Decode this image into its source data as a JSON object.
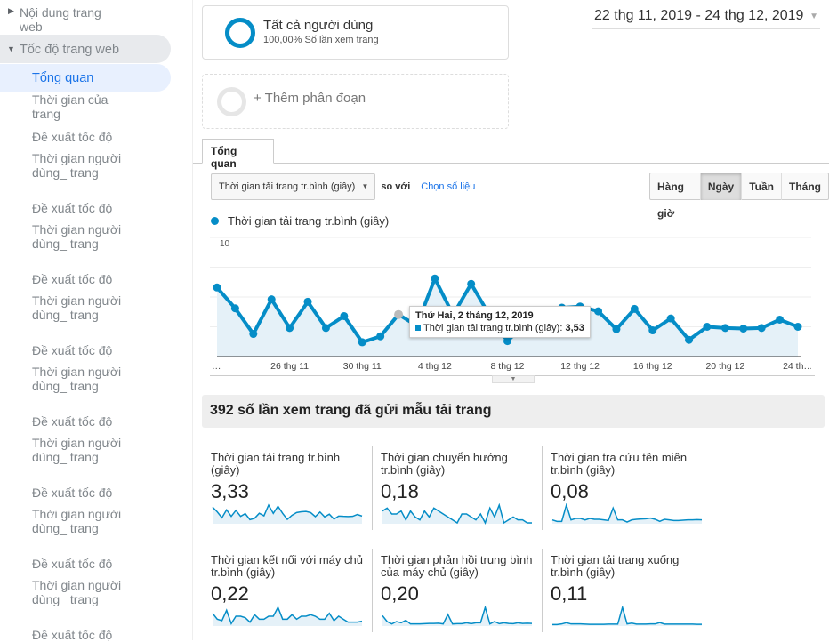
{
  "sidebar": {
    "content_item": "Nội dung trang web",
    "speed_item": "Tốc độ trang web",
    "items": [
      {
        "label": "Tổng quan",
        "active": true
      },
      {
        "label": "Thời gian của trang"
      },
      {
        "label": "Đề xuất tốc độ"
      },
      {
        "label": "Thời gian người dùng_ trang"
      },
      {
        "label": "Đề xuất tốc độ"
      },
      {
        "label": "Thời gian người dùng_ trang"
      },
      {
        "label": "Đề xuất tốc độ"
      },
      {
        "label": "Thời gian người dùng_ trang"
      },
      {
        "label": "Đề xuất tốc độ"
      },
      {
        "label": "Thời gian người dùng_ trang"
      },
      {
        "label": "Đề xuất tốc độ"
      },
      {
        "label": "Thời gian người dùng_ trang"
      },
      {
        "label": "Đề xuất tốc độ"
      },
      {
        "label": "Thời gian người dùng_ trang"
      },
      {
        "label": "Đề xuất tốc độ"
      },
      {
        "label": "Thời gian người dùng_ trang"
      },
      {
        "label": "Đề xuất tốc độ"
      }
    ]
  },
  "segments": {
    "all_users": {
      "title": "Tất cả người dùng",
      "subtitle": "100,00% Số lần xem trang"
    },
    "add_segment": "+ Thêm phân đoạn"
  },
  "date_range": "22 thg 11, 2019 - 24 thg 12, 2019",
  "tab": "Tổng quan",
  "controls": {
    "metric_select": "Thời gian tải trang tr.bình (giây)",
    "compare_label": "so với",
    "choose_metric": "Chọn số liệu",
    "granularity": [
      "Hàng giờ",
      "Ngày",
      "Tuần",
      "Tháng"
    ],
    "selected_granularity": "Ngày"
  },
  "colors": {
    "accent": "#058dc7",
    "fill": "#e5f1f8",
    "link": "#1a73e8"
  },
  "chart_data": {
    "type": "area",
    "legend": "Thời gian tải trang tr.bình (giây)",
    "ylim": [
      0,
      10
    ],
    "y_ticks": [
      "10",
      "5"
    ],
    "x_tick_labels": [
      {
        "index": 0,
        "label": "…"
      },
      {
        "index": 4,
        "label": "26 thg 11"
      },
      {
        "index": 8,
        "label": "30 thg 11"
      },
      {
        "index": 12,
        "label": "4 thg 12"
      },
      {
        "index": 16,
        "label": "8 thg 12"
      },
      {
        "index": 20,
        "label": "12 thg 12"
      },
      {
        "index": 24,
        "label": "16 thg 12"
      },
      {
        "index": 28,
        "label": "20 thg 12"
      },
      {
        "index": 32,
        "label": "24 th…"
      }
    ],
    "values": [
      5.8,
      4.05,
      1.9,
      4.8,
      2.4,
      4.6,
      2.4,
      3.4,
      1.2,
      1.7,
      3.53,
      2.6,
      6.55,
      3.5,
      6.1,
      3.5,
      1.3,
      2.8,
      3.8,
      4.1,
      4.2,
      3.8,
      2.3,
      4.0,
      2.2,
      3.2,
      1.4,
      2.5,
      2.4,
      2.35,
      2.4,
      3.1,
      2.5
    ],
    "tooltip": {
      "index": 10,
      "title": "Thứ Hai, 2 tháng 12, 2019",
      "series": "Thời gian tải trang tr.bình (giây):",
      "value": "3,53"
    }
  },
  "summary_title": "392 số lần xem trang đã gửi mẫu tải trang",
  "metrics": [
    {
      "label": "Thời gian tải trang tr.bình (giây)",
      "value": "3,33",
      "spark": [
        5.8,
        4.05,
        1.9,
        4.8,
        2.4,
        4.6,
        2.4,
        3.4,
        1.2,
        1.7,
        3.53,
        2.6,
        6.55,
        3.5,
        6.1,
        3.5,
        1.3,
        2.8,
        3.8,
        4.1,
        4.2,
        3.8,
        2.3,
        4.0,
        2.2,
        3.2,
        1.4,
        2.5,
        2.4,
        2.35,
        2.4,
        3.1,
        2.5
      ]
    },
    {
      "label": "Thời gian chuyển hướng tr.bình (giây)",
      "value": "0,18",
      "spark": [
        4,
        5,
        3,
        3,
        4,
        1,
        4,
        2,
        1,
        4,
        2,
        5,
        4,
        3,
        2,
        1,
        0,
        3,
        3,
        2,
        1,
        3,
        0,
        5,
        2,
        6,
        0,
        1,
        2,
        1,
        1,
        0,
        0
      ]
    },
    {
      "label": "Thời gian tra cứu tên miền tr.bình (giây)",
      "value": "0,08",
      "spark": [
        1,
        0.5,
        0.5,
        6,
        1,
        1.5,
        1.5,
        1,
        1.5,
        1.2,
        1.2,
        1,
        0.8,
        5,
        1,
        1,
        0.3,
        1,
        1.2,
        1.3,
        1.4,
        1.6,
        1.2,
        0.5,
        1.2,
        1,
        0.8,
        0.8,
        0.9,
        1,
        1,
        1.1,
        1
      ]
    },
    {
      "label": "Thời gian kết nối với máy chủ tr.bình (giây)",
      "value": "0,22",
      "spark": [
        4,
        2,
        1.5,
        5,
        0.5,
        3,
        3,
        2.5,
        1,
        3.5,
        2,
        2,
        3,
        3,
        6,
        2,
        2,
        3.5,
        2,
        3,
        3,
        3.5,
        3,
        2,
        2,
        4,
        1.5,
        3,
        2,
        1,
        1,
        1,
        1.3
      ]
    },
    {
      "label": "Thời gian phản hồi trung bình của máy chủ (giây)",
      "value": "0,20",
      "spark": [
        4,
        1.5,
        0.5,
        1.5,
        1,
        2,
        0.5,
        0.5,
        0.5,
        0.6,
        0.7,
        0.7,
        0.8,
        0.5,
        4.5,
        0.5,
        0.6,
        0.6,
        1,
        0.6,
        1,
        1,
        7.5,
        0.5,
        1.5,
        0.6,
        1,
        0.7,
        0.6,
        1,
        0.7,
        0.8,
        0.7
      ]
    },
    {
      "label": "Thời gian tải trang xuống tr.bình (giây)",
      "value": "0,11",
      "spark": [
        0.3,
        0.3,
        0.6,
        1.2,
        0.6,
        0.6,
        0.6,
        0.5,
        0.4,
        0.4,
        0.4,
        0.4,
        0.5,
        0.5,
        0.5,
        9,
        0.6,
        1,
        0.5,
        0.5,
        0.5,
        0.6,
        0.6,
        1.3,
        0.5,
        0.5,
        0.5,
        0.5,
        0.5,
        0.5,
        0.5,
        0.4,
        0.4
      ]
    }
  ]
}
